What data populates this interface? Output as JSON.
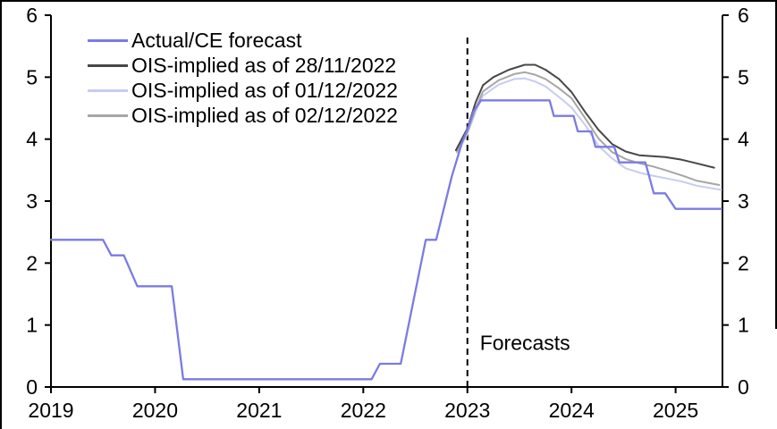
{
  "chart_data": {
    "type": "line",
    "title": "",
    "xlabel": "",
    "ylabel": "",
    "x_range": [
      2019,
      2025.45
    ],
    "y_range": [
      0,
      6
    ],
    "x_ticks": [
      "2019",
      "2020",
      "2021",
      "2022",
      "2023",
      "2024",
      "2025"
    ],
    "x_tick_values": [
      2019,
      2020,
      2021,
      2022,
      2023,
      2024,
      2025
    ],
    "y_ticks": [
      "0",
      "1",
      "2",
      "3",
      "4",
      "5",
      "6"
    ],
    "y_tick_values": [
      0,
      1,
      2,
      3,
      4,
      5,
      6
    ],
    "dual_y_axis": true,
    "grid": false,
    "legend_position": "top-left",
    "forecast_divider_x": 2023.0,
    "annotations": [
      {
        "text": "Forecasts",
        "x": 2023.12,
        "y": 0.6
      }
    ],
    "series": [
      {
        "name": "Actual/CE forecast",
        "color": "#7b7be4",
        "width": 2.3,
        "points": [
          [
            2019.0,
            2.375
          ],
          [
            2019.5,
            2.375
          ],
          [
            2019.58,
            2.125
          ],
          [
            2019.7,
            2.125
          ],
          [
            2019.83,
            1.625
          ],
          [
            2020.16,
            1.625
          ],
          [
            2020.27,
            0.125
          ],
          [
            2022.08,
            0.125
          ],
          [
            2022.16,
            0.375
          ],
          [
            2022.36,
            0.375
          ],
          [
            2022.6,
            2.375
          ],
          [
            2022.7,
            2.375
          ],
          [
            2022.85,
            3.4
          ],
          [
            2022.95,
            3.95
          ],
          [
            2023.0,
            4.15
          ],
          [
            2023.06,
            4.45
          ],
          [
            2023.13,
            4.625
          ],
          [
            2023.79,
            4.625
          ],
          [
            2023.83,
            4.375
          ],
          [
            2024.02,
            4.375
          ],
          [
            2024.06,
            4.125
          ],
          [
            2024.19,
            4.125
          ],
          [
            2024.23,
            3.875
          ],
          [
            2024.41,
            3.875
          ],
          [
            2024.46,
            3.625
          ],
          [
            2024.71,
            3.625
          ],
          [
            2024.79,
            3.125
          ],
          [
            2024.9,
            3.125
          ],
          [
            2025.0,
            2.875
          ],
          [
            2025.44,
            2.875
          ]
        ]
      },
      {
        "name": "OIS-implied as of 28/11/2022",
        "color": "#474747",
        "width": 2,
        "points": [
          [
            2022.89,
            3.82
          ],
          [
            2023.0,
            4.17
          ],
          [
            2023.08,
            4.6
          ],
          [
            2023.15,
            4.87
          ],
          [
            2023.25,
            5.0
          ],
          [
            2023.4,
            5.12
          ],
          [
            2023.55,
            5.2
          ],
          [
            2023.65,
            5.2
          ],
          [
            2023.75,
            5.12
          ],
          [
            2023.88,
            4.97
          ],
          [
            2024.0,
            4.76
          ],
          [
            2024.13,
            4.44
          ],
          [
            2024.26,
            4.15
          ],
          [
            2024.39,
            3.92
          ],
          [
            2024.52,
            3.8
          ],
          [
            2024.65,
            3.74
          ],
          [
            2024.9,
            3.71
          ],
          [
            2025.05,
            3.67
          ],
          [
            2025.2,
            3.61
          ],
          [
            2025.37,
            3.54
          ]
        ]
      },
      {
        "name": "OIS-implied as of 01/12/2022",
        "color": "#c6ccf2",
        "width": 2,
        "points": [
          [
            2022.9,
            3.78
          ],
          [
            2023.0,
            4.08
          ],
          [
            2023.08,
            4.45
          ],
          [
            2023.15,
            4.7
          ],
          [
            2023.3,
            4.88
          ],
          [
            2023.45,
            4.97
          ],
          [
            2023.55,
            4.98
          ],
          [
            2023.65,
            4.93
          ],
          [
            2023.75,
            4.85
          ],
          [
            2023.88,
            4.68
          ],
          [
            2024.0,
            4.51
          ],
          [
            2024.13,
            4.23
          ],
          [
            2024.26,
            3.89
          ],
          [
            2024.39,
            3.69
          ],
          [
            2024.52,
            3.53
          ],
          [
            2024.65,
            3.46
          ],
          [
            2024.78,
            3.41
          ],
          [
            2024.9,
            3.37
          ],
          [
            2025.05,
            3.32
          ],
          [
            2025.2,
            3.25
          ],
          [
            2025.44,
            3.18
          ]
        ]
      },
      {
        "name": "OIS-implied as of 02/12/2022",
        "color": "#a6a6a6",
        "width": 2,
        "points": [
          [
            2022.9,
            3.8
          ],
          [
            2023.0,
            4.12
          ],
          [
            2023.08,
            4.5
          ],
          [
            2023.15,
            4.77
          ],
          [
            2023.3,
            4.95
          ],
          [
            2023.45,
            5.05
          ],
          [
            2023.55,
            5.08
          ],
          [
            2023.65,
            5.04
          ],
          [
            2023.75,
            4.97
          ],
          [
            2023.88,
            4.82
          ],
          [
            2024.0,
            4.66
          ],
          [
            2024.13,
            4.34
          ],
          [
            2024.26,
            4.01
          ],
          [
            2024.39,
            3.79
          ],
          [
            2024.52,
            3.68
          ],
          [
            2024.65,
            3.61
          ],
          [
            2024.78,
            3.56
          ],
          [
            2024.9,
            3.5
          ],
          [
            2025.05,
            3.42
          ],
          [
            2025.2,
            3.33
          ],
          [
            2025.42,
            3.26
          ]
        ]
      }
    ],
    "colors": {
      "axis": "#000000",
      "forecast_divider": "#000000"
    }
  }
}
